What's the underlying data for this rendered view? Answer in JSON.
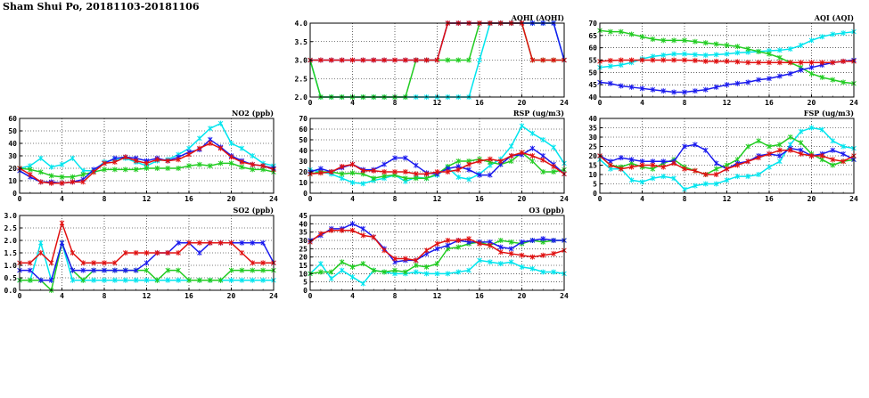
{
  "page_title": "Sham Shui Po, 20181103-20181106",
  "colors": {
    "cyan": "#00e5ee",
    "green": "#22cc22",
    "blue": "#1a1aee",
    "red": "#e01010"
  },
  "chart_data": [
    {
      "id": "aqhi",
      "type": "line",
      "title": "AQHI (AQHI)",
      "xlim": [
        0,
        24
      ],
      "xticks": [
        0,
        4,
        8,
        12,
        16,
        20,
        24
      ],
      "ylim": [
        2.0,
        4.0
      ],
      "yticks": [
        2.0,
        2.5,
        3.0,
        3.5,
        4.0
      ],
      "ydec": 1,
      "grid": true,
      "series": [
        {
          "color": "cyan",
          "values": [
            3,
            2,
            2,
            2,
            2,
            2,
            2,
            2,
            2,
            2,
            2,
            2,
            2,
            2,
            2,
            2,
            3,
            4,
            4,
            4,
            4,
            4,
            4,
            4,
            3
          ]
        },
        {
          "color": "green",
          "values": [
            3,
            2,
            2,
            2,
            2,
            2,
            2,
            2,
            2,
            2,
            3,
            3,
            3,
            3,
            3,
            3,
            4,
            4,
            4,
            4,
            4,
            3,
            3,
            3,
            3
          ]
        },
        {
          "color": "blue",
          "values": [
            3,
            3,
            3,
            3,
            3,
            3,
            3,
            3,
            3,
            3,
            3,
            3,
            3,
            4,
            4,
            4,
            4,
            4,
            4,
            4,
            4,
            4,
            4,
            4,
            3
          ]
        },
        {
          "color": "red",
          "values": [
            3,
            3,
            3,
            3,
            3,
            3,
            3,
            3,
            3,
            3,
            3,
            3,
            3,
            4,
            4,
            4,
            4,
            4,
            4,
            4,
            4,
            3,
            3,
            3,
            3
          ]
        }
      ]
    },
    {
      "id": "aqi",
      "type": "line",
      "title": "AQI (AQI)",
      "xlim": [
        0,
        24
      ],
      "xticks": [
        0,
        4,
        8,
        12,
        16,
        20,
        24
      ],
      "ylim": [
        40,
        70
      ],
      "yticks": [
        40,
        45,
        50,
        55,
        60,
        65,
        70
      ],
      "ydec": 0,
      "grid": true,
      "series": [
        {
          "color": "cyan",
          "values": [
            52,
            52.5,
            53,
            54,
            55.5,
            56.5,
            57,
            57.5,
            57.5,
            57.2,
            57,
            57.2,
            57.5,
            58,
            58.2,
            58.5,
            58.8,
            59,
            59.5,
            61,
            63,
            64.5,
            65.5,
            66,
            66.5
          ]
        },
        {
          "color": "green",
          "values": [
            67,
            66.5,
            66.5,
            65.5,
            64.5,
            63.5,
            63,
            63,
            63,
            62.5,
            62,
            61.5,
            61,
            60.5,
            59.5,
            58.5,
            57.5,
            56,
            54,
            52,
            49.5,
            48,
            47,
            46,
            45.5
          ]
        },
        {
          "color": "blue",
          "values": [
            46,
            45.5,
            44.5,
            44,
            43.5,
            43,
            42.5,
            42,
            42,
            42.5,
            43,
            44,
            45,
            45.5,
            46,
            47,
            47.5,
            48.5,
            49.5,
            51,
            52,
            53,
            54,
            54.5,
            55
          ]
        },
        {
          "color": "red",
          "values": [
            54.5,
            54.8,
            55,
            55,
            55,
            55,
            55,
            55,
            55,
            54.8,
            54.5,
            54.5,
            54.5,
            54.3,
            54,
            54,
            54,
            54,
            54,
            54,
            54,
            54,
            54,
            54.5,
            54.5
          ]
        }
      ]
    },
    {
      "id": "no2",
      "type": "line",
      "title": "NO2 (ppb)",
      "xlim": [
        0,
        24
      ],
      "xticks": [
        0,
        4,
        8,
        12,
        16,
        20,
        24
      ],
      "ylim": [
        0,
        60
      ],
      "yticks": [
        0,
        10,
        20,
        30,
        40,
        50,
        60
      ],
      "ydec": 0,
      "grid": true,
      "series": [
        {
          "color": "cyan",
          "values": [
            20,
            22,
            28,
            21,
            23,
            28,
            18,
            18,
            25,
            27,
            28,
            25,
            22,
            26,
            27,
            31,
            36,
            44,
            52,
            56,
            40,
            36,
            30,
            24,
            22
          ]
        },
        {
          "color": "green",
          "values": [
            20,
            19,
            17,
            14,
            13,
            13,
            15,
            17,
            19,
            19,
            19,
            19,
            20,
            20,
            20,
            20,
            22,
            23,
            22,
            24,
            24,
            21,
            19,
            19,
            17
          ]
        },
        {
          "color": "blue",
          "values": [
            18,
            13,
            9,
            9,
            8,
            9,
            11,
            19,
            24,
            28,
            29,
            28,
            26,
            28,
            26,
            29,
            33,
            35,
            43,
            37,
            30,
            26,
            23,
            22,
            20
          ]
        },
        {
          "color": "red",
          "values": [
            20,
            15,
            9,
            8,
            8,
            9,
            9,
            17,
            24,
            25,
            29,
            26,
            24,
            27,
            26,
            27,
            31,
            36,
            40,
            36,
            29,
            25,
            23,
            22,
            19
          ]
        }
      ]
    },
    {
      "id": "rsp",
      "type": "line",
      "title": "RSP (ug/m3)",
      "xlim": [
        0,
        24
      ],
      "xticks": [
        0,
        4,
        8,
        12,
        16,
        20,
        24
      ],
      "ylim": [
        0,
        70
      ],
      "yticks": [
        0,
        10,
        20,
        30,
        40,
        50,
        60,
        70
      ],
      "ydec": 0,
      "grid": true,
      "series": [
        {
          "color": "cyan",
          "values": [
            22,
            20,
            18,
            14,
            10,
            9,
            12,
            14,
            17,
            11,
            15,
            14,
            17,
            24,
            15,
            13,
            18,
            26,
            32,
            44,
            63,
            56,
            50,
            43,
            28
          ]
        },
        {
          "color": "green",
          "values": [
            18,
            20,
            20,
            18,
            19,
            18,
            14,
            16,
            17,
            14,
            14,
            14,
            18,
            25,
            30,
            30,
            32,
            29,
            27,
            30,
            38,
            30,
            20,
            20,
            22
          ]
        },
        {
          "color": "blue",
          "values": [
            20,
            23,
            20,
            24,
            27,
            22,
            22,
            27,
            33,
            33,
            26,
            19,
            18,
            23,
            25,
            22,
            17,
            17,
            27,
            35,
            36,
            42,
            35,
            27,
            18
          ]
        },
        {
          "color": "red",
          "values": [
            18,
            19,
            20,
            25,
            27,
            21,
            21,
            20,
            20,
            20,
            18,
            18,
            20,
            20,
            22,
            27,
            30,
            32,
            30,
            35,
            38,
            35,
            31,
            25,
            18
          ]
        }
      ]
    },
    {
      "id": "fsp",
      "type": "line",
      "title": "FSP (ug/m3)",
      "xlim": [
        0,
        24
      ],
      "xticks": [
        0,
        4,
        8,
        12,
        16,
        20,
        24
      ],
      "ylim": [
        0,
        40
      ],
      "yticks": [
        0,
        5,
        10,
        15,
        20,
        25,
        30,
        35,
        40
      ],
      "ydec": 0,
      "grid": true,
      "series": [
        {
          "color": "cyan",
          "values": [
            18,
            13,
            13,
            7,
            6,
            8,
            9,
            8,
            2,
            4,
            5,
            5,
            7,
            9,
            9,
            10,
            14,
            17,
            26,
            33,
            35,
            34,
            28,
            25,
            24
          ]
        },
        {
          "color": "green",
          "values": [
            20,
            15,
            14,
            16,
            14,
            13,
            16,
            18,
            14,
            12,
            10,
            13,
            15,
            18,
            25,
            28,
            25,
            26,
            30,
            27,
            21,
            18,
            15,
            17,
            18
          ]
        },
        {
          "color": "blue",
          "values": [
            20,
            17,
            19,
            18,
            17,
            17,
            17,
            17,
            25,
            26,
            23,
            16,
            13,
            16,
            17,
            20,
            21,
            20,
            24,
            23,
            20,
            21,
            23,
            21,
            18
          ]
        },
        {
          "color": "red",
          "values": [
            20,
            15,
            13,
            14,
            15,
            15,
            14,
            16,
            13,
            12,
            10,
            10,
            13,
            15,
            17,
            19,
            21,
            23,
            23,
            21,
            20,
            20,
            18,
            17,
            20
          ]
        }
      ]
    },
    {
      "id": "so2",
      "type": "line",
      "title": "SO2 (ppb)",
      "xlim": [
        0,
        24
      ],
      "xticks": [
        0,
        4,
        8,
        12,
        16,
        20,
        24
      ],
      "ylim": [
        0,
        3.0
      ],
      "yticks": [
        0.0,
        0.5,
        1.0,
        1.5,
        2.0,
        2.5,
        3.0
      ],
      "ydec": 1,
      "grid": true,
      "series": [
        {
          "color": "cyan",
          "values": [
            0.4,
            0.4,
            1.9,
            0.4,
            1.9,
            0.4,
            0.4,
            0.4,
            0.4,
            0.4,
            0.4,
            0.4,
            0.4,
            0.4,
            0.4,
            0.4,
            0.4,
            0.4,
            0.4,
            0.4,
            0.4,
            0.4,
            0.4,
            0.4,
            0.4
          ]
        },
        {
          "color": "green",
          "values": [
            0.4,
            0.4,
            0.4,
            0.0,
            1.9,
            0.8,
            0.4,
            0.8,
            0.8,
            0.8,
            0.8,
            0.8,
            0.8,
            0.4,
            0.8,
            0.8,
            0.4,
            0.4,
            0.4,
            0.4,
            0.8,
            0.8,
            0.8,
            0.8,
            0.8
          ]
        },
        {
          "color": "blue",
          "values": [
            0.8,
            0.8,
            0.4,
            0.4,
            1.9,
            0.8,
            0.8,
            0.8,
            0.8,
            0.8,
            0.8,
            0.8,
            1.1,
            1.5,
            1.5,
            1.9,
            1.9,
            1.5,
            1.9,
            1.9,
            1.9,
            1.9,
            1.9,
            1.9,
            1.1
          ]
        },
        {
          "color": "red",
          "values": [
            1.1,
            1.1,
            1.5,
            1.1,
            2.7,
            1.5,
            1.1,
            1.1,
            1.1,
            1.1,
            1.5,
            1.5,
            1.5,
            1.5,
            1.5,
            1.5,
            1.9,
            1.9,
            1.9,
            1.9,
            1.9,
            1.5,
            1.1,
            1.1,
            1.1
          ]
        }
      ]
    },
    {
      "id": "o3",
      "type": "line",
      "title": "O3 (ppb)",
      "xlim": [
        0,
        24
      ],
      "xticks": [
        0,
        4,
        8,
        12,
        16,
        20,
        24
      ],
      "ylim": [
        0,
        45
      ],
      "yticks": [
        0,
        5,
        10,
        15,
        20,
        25,
        30,
        35,
        40,
        45
      ],
      "ydec": 0,
      "grid": true,
      "series": [
        {
          "color": "cyan",
          "values": [
            10,
            16,
            7,
            12,
            8,
            4,
            12,
            11,
            10,
            10,
            11,
            10,
            10,
            10,
            11,
            12,
            18,
            17,
            16,
            17,
            14,
            13,
            11,
            11,
            10
          ]
        },
        {
          "color": "green",
          "values": [
            10,
            11,
            11,
            17,
            14,
            16,
            12,
            11,
            12,
            11,
            15,
            14,
            16,
            25,
            26,
            28,
            29,
            27,
            30,
            29,
            28,
            30,
            29,
            30,
            30
          ]
        },
        {
          "color": "blue",
          "values": [
            30,
            33,
            37,
            37,
            40,
            37,
            32,
            25,
            17,
            18,
            18,
            22,
            25,
            27,
            30,
            29,
            29,
            29,
            26,
            25,
            29,
            30,
            31,
            30,
            30
          ]
        },
        {
          "color": "red",
          "values": [
            29,
            34,
            36,
            36,
            36,
            33,
            32,
            24,
            19,
            19,
            18,
            24,
            28,
            30,
            30,
            31,
            28,
            27,
            23,
            22,
            21,
            20,
            21,
            22,
            24
          ]
        }
      ]
    }
  ]
}
